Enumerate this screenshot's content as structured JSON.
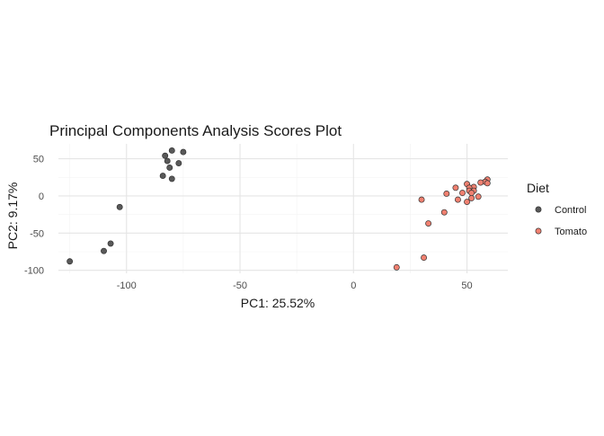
{
  "chart_data": {
    "type": "scatter",
    "title": "Principal Components Analysis Scores Plot",
    "xlabel": "PC1: 25.52%",
    "ylabel": "PC2: 9.17%",
    "xlim": [
      -130,
      68
    ],
    "ylim": [
      -104,
      70
    ],
    "x_ticks": [
      -100,
      -50,
      0,
      50
    ],
    "y_ticks": [
      50,
      0,
      -50,
      -100
    ],
    "x_tick_labels": [
      "-100",
      "-50",
      "0",
      "50"
    ],
    "y_tick_labels": [
      "50",
      "0",
      "-50",
      "-100"
    ],
    "grid": true,
    "legend": {
      "title": "Diet",
      "position": "right",
      "entries": [
        "Control",
        "Tomato"
      ]
    },
    "colors": {
      "Control": "#595959",
      "Tomato": "#f08070",
      "stroke": "#333333",
      "grid_major": "#e5e5e5",
      "grid_minor": "#f2f2f2",
      "text": "#1a1a1a",
      "tick_text": "#4d4d4d"
    },
    "series": [
      {
        "name": "Control",
        "points": [
          {
            "x": -80,
            "y": 61
          },
          {
            "x": -75,
            "y": 59
          },
          {
            "x": -83,
            "y": 54
          },
          {
            "x": -82,
            "y": 47
          },
          {
            "x": -77,
            "y": 44
          },
          {
            "x": -81,
            "y": 38
          },
          {
            "x": -84,
            "y": 27
          },
          {
            "x": -80,
            "y": 23
          },
          {
            "x": -103,
            "y": -15
          },
          {
            "x": -107,
            "y": -64
          },
          {
            "x": -110,
            "y": -74
          },
          {
            "x": -125,
            "y": -88
          }
        ]
      },
      {
        "name": "Tomato",
        "points": [
          {
            "x": 59,
            "y": 22
          },
          {
            "x": 58,
            "y": 19
          },
          {
            "x": 56,
            "y": 18
          },
          {
            "x": 59,
            "y": 17
          },
          {
            "x": 50,
            "y": 16
          },
          {
            "x": 53,
            "y": 12
          },
          {
            "x": 51,
            "y": 11
          },
          {
            "x": 45,
            "y": 11
          },
          {
            "x": 51,
            "y": 7
          },
          {
            "x": 53,
            "y": 7
          },
          {
            "x": 52,
            "y": 4
          },
          {
            "x": 48,
            "y": 4
          },
          {
            "x": 41,
            "y": 3
          },
          {
            "x": 55,
            "y": -1
          },
          {
            "x": 52,
            "y": -3
          },
          {
            "x": 30,
            "y": -5
          },
          {
            "x": 46,
            "y": -5
          },
          {
            "x": 50,
            "y": -8
          },
          {
            "x": 40,
            "y": -22
          },
          {
            "x": 33,
            "y": -37
          },
          {
            "x": 31,
            "y": -83
          },
          {
            "x": 19,
            "y": -96
          }
        ]
      }
    ]
  }
}
